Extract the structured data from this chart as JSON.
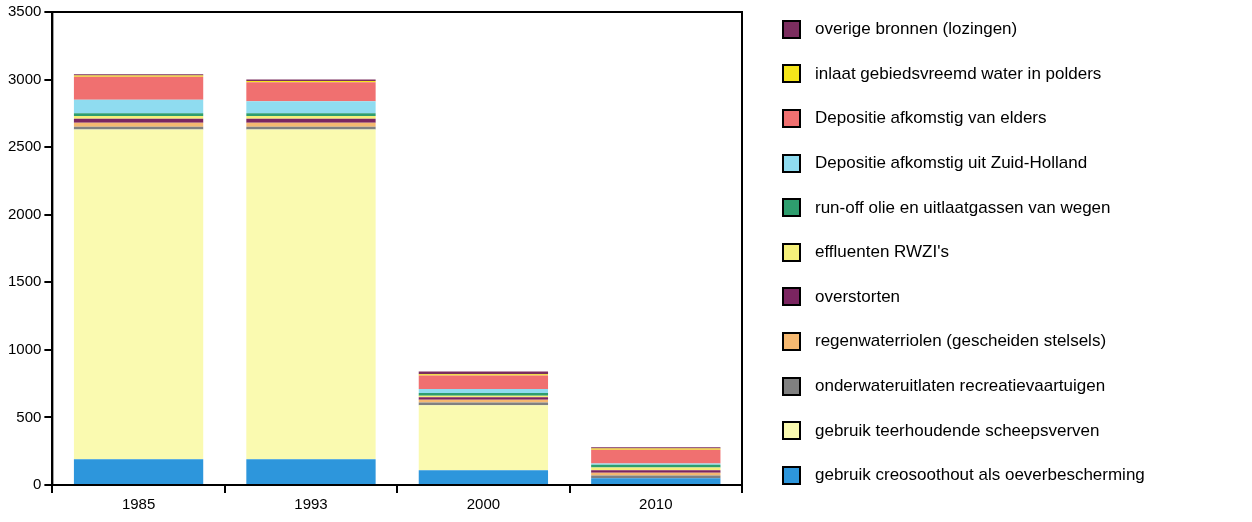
{
  "chart_data": {
    "type": "bar",
    "stacked": true,
    "legend": "right",
    "grid": false,
    "categories": [
      "1985",
      "1993",
      "2000",
      "2010"
    ],
    "ylim": [
      0,
      3500
    ],
    "yticks": [
      0,
      500,
      1000,
      1500,
      2000,
      2500,
      3000,
      3500
    ],
    "series": [
      {
        "name": "gebruik creosoothout als oeverbescherming",
        "color": "#2d96dc",
        "values": [
          190,
          190,
          110,
          50
        ]
      },
      {
        "name": "gebruik teerhoudende scheepsverven",
        "color": "#fafab0",
        "values": [
          2440,
          2440,
          480,
          0
        ]
      },
      {
        "name": "onderwateruitlaten recreatievaartuigen",
        "color": "#808080",
        "values": [
          20,
          20,
          20,
          20
        ]
      },
      {
        "name": "regenwaterriolen (gescheiden stelsels)",
        "color": "#f5b870",
        "values": [
          30,
          30,
          20,
          20
        ]
      },
      {
        "name": "overstorten",
        "color": "#7b2560",
        "values": [
          30,
          30,
          20,
          20
        ]
      },
      {
        "name": "effluenten RWZI's",
        "color": "#f5f07a",
        "values": [
          20,
          20,
          10,
          20
        ]
      },
      {
        "name": "run-off olie en uitlaatgassen van wegen",
        "color": "#2e9e6e",
        "values": [
          20,
          20,
          20,
          20
        ]
      },
      {
        "name": "Depositie afkomstig uit Zuid-Holland",
        "color": "#8fdcf0",
        "values": [
          100,
          90,
          30,
          10
        ]
      },
      {
        "name": "Depositie afkomstig van elders",
        "color": "#f07070",
        "values": [
          170,
          140,
          100,
          100
        ]
      },
      {
        "name": "inlaat gebiedsvreemd water in polders",
        "color": "#f5e51a",
        "values": [
          10,
          10,
          10,
          10
        ]
      },
      {
        "name": "overige bronnen (lozingen)",
        "color": "#7b2d5e",
        "values": [
          10,
          10,
          20,
          10
        ]
      }
    ]
  }
}
